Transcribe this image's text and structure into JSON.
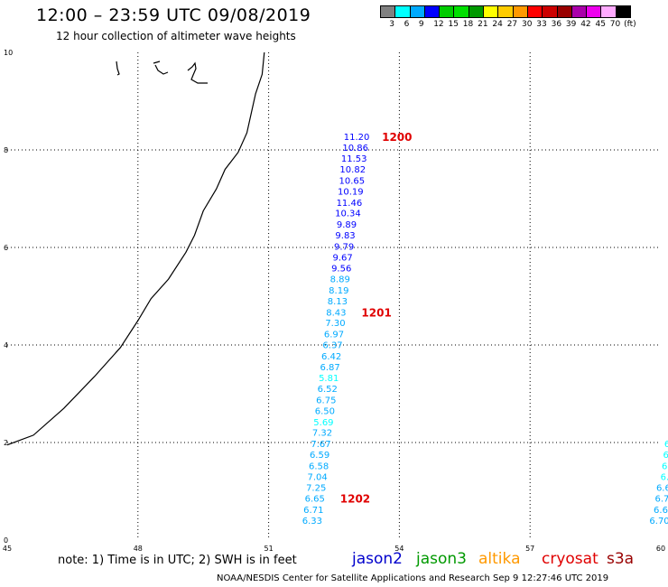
{
  "header": {
    "title": "12:00 – 23:59 UTC 09/08/2019",
    "subtitle": "12 hour collection of altimeter wave heights"
  },
  "legend": {
    "colors": [
      "#808080",
      "#00ffff",
      "#00aaff",
      "#0000ff",
      "#00cc00",
      "#00e000",
      "#009900",
      "#ffff00",
      "#ffcc00",
      "#ff9900",
      "#ff0000",
      "#cc0000",
      "#990000",
      "#aa00aa",
      "#ee00ee",
      "#ffaaff",
      "#000000"
    ],
    "labels": [
      "3",
      "6",
      "9",
      "12",
      "15",
      "18",
      "21",
      "24",
      "27",
      "30",
      "33",
      "36",
      "39",
      "42",
      "45",
      "70",
      "(ft)"
    ]
  },
  "axes": {
    "x_ticks": [
      "45",
      "48",
      "51",
      "54",
      "57",
      "60"
    ],
    "y_ticks": [
      "0",
      "2",
      "4",
      "6",
      "8",
      "10"
    ]
  },
  "tracks": [
    {
      "id": "track-1",
      "time_labels": [
        {
          "text": "1200",
          "at_index": 0
        },
        {
          "text": "1201",
          "at_index": 16
        },
        {
          "text": "1202",
          "at_index": 33
        }
      ],
      "points": [
        {
          "lon": 53.02,
          "lat": 8.28,
          "v": "11.20"
        },
        {
          "lon": 52.99,
          "lat": 8.06,
          "v": "10.86"
        },
        {
          "lon": 52.96,
          "lat": 7.83,
          "v": "11.53"
        },
        {
          "lon": 52.93,
          "lat": 7.61,
          "v": "10.82"
        },
        {
          "lon": 52.91,
          "lat": 7.38,
          "v": "10.65"
        },
        {
          "lon": 52.88,
          "lat": 7.16,
          "v": "10.19"
        },
        {
          "lon": 52.85,
          "lat": 6.93,
          "v": "11.46"
        },
        {
          "lon": 52.82,
          "lat": 6.71,
          "v": "10.34"
        },
        {
          "lon": 52.79,
          "lat": 6.48,
          "v": "9.89"
        },
        {
          "lon": 52.76,
          "lat": 6.26,
          "v": "9.83"
        },
        {
          "lon": 52.73,
          "lat": 6.03,
          "v": "9.79"
        },
        {
          "lon": 52.7,
          "lat": 5.81,
          "v": "9.67"
        },
        {
          "lon": 52.67,
          "lat": 5.58,
          "v": "9.56"
        },
        {
          "lon": 52.64,
          "lat": 5.36,
          "v": "8.89"
        },
        {
          "lon": 52.61,
          "lat": 5.13,
          "v": "8.19"
        },
        {
          "lon": 52.58,
          "lat": 4.91,
          "v": "8.13"
        },
        {
          "lon": 52.55,
          "lat": 4.68,
          "v": "8.43"
        },
        {
          "lon": 52.53,
          "lat": 4.46,
          "v": "7.30"
        },
        {
          "lon": 52.5,
          "lat": 4.23,
          "v": "6.97"
        },
        {
          "lon": 52.47,
          "lat": 4.01,
          "v": "6.37"
        },
        {
          "lon": 52.44,
          "lat": 3.78,
          "v": "6.42"
        },
        {
          "lon": 52.41,
          "lat": 3.56,
          "v": "6.87"
        },
        {
          "lon": 52.38,
          "lat": 3.33,
          "v": "5.81"
        },
        {
          "lon": 52.35,
          "lat": 3.11,
          "v": "6.52"
        },
        {
          "lon": 52.32,
          "lat": 2.88,
          "v": "6.75"
        },
        {
          "lon": 52.29,
          "lat": 2.66,
          "v": "6.50"
        },
        {
          "lon": 52.26,
          "lat": 2.43,
          "v": "5.69"
        },
        {
          "lon": 52.23,
          "lat": 2.21,
          "v": "7.32"
        },
        {
          "lon": 52.2,
          "lat": 1.98,
          "v": "7.67"
        },
        {
          "lon": 52.17,
          "lat": 1.76,
          "v": "6.59"
        },
        {
          "lon": 52.15,
          "lat": 1.53,
          "v": "6.58"
        },
        {
          "lon": 52.12,
          "lat": 1.31,
          "v": "7.04"
        },
        {
          "lon": 52.09,
          "lat": 1.08,
          "v": "7.25"
        },
        {
          "lon": 52.06,
          "lat": 0.86,
          "v": "6.65"
        },
        {
          "lon": 52.03,
          "lat": 0.63,
          "v": "6.71"
        },
        {
          "lon": 52.0,
          "lat": 0.41,
          "v": "6.33"
        }
      ]
    },
    {
      "id": "track-2",
      "time_labels": [],
      "points": [
        {
          "lon": 60.18,
          "lat": 1.98,
          "v": "6."
        },
        {
          "lon": 60.15,
          "lat": 1.76,
          "v": "6."
        },
        {
          "lon": 60.12,
          "lat": 1.53,
          "v": "6."
        },
        {
          "lon": 60.09,
          "lat": 1.31,
          "v": "6."
        },
        {
          "lon": 60.06,
          "lat": 1.08,
          "v": "6.6"
        },
        {
          "lon": 60.03,
          "lat": 0.86,
          "v": "6.7"
        },
        {
          "lon": 60.0,
          "lat": 0.63,
          "v": "6.6"
        },
        {
          "lon": 59.97,
          "lat": 0.41,
          "v": "6.70"
        }
      ]
    }
  ],
  "coastline": [
    [
      45,
      1.95
    ],
    [
      45.6,
      2.15
    ],
    [
      46.3,
      2.7
    ],
    [
      47.0,
      3.35
    ],
    [
      47.6,
      3.95
    ],
    [
      48.0,
      4.5
    ],
    [
      48.3,
      4.95
    ],
    [
      48.7,
      5.35
    ],
    [
      49.1,
      5.9
    ],
    [
      49.3,
      6.25
    ],
    [
      49.5,
      6.75
    ],
    [
      49.8,
      7.2
    ],
    [
      50.0,
      7.6
    ],
    [
      50.3,
      7.95
    ],
    [
      50.5,
      8.35
    ],
    [
      50.6,
      8.75
    ],
    [
      50.7,
      9.15
    ],
    [
      50.85,
      9.55
    ],
    [
      50.9,
      10.0
    ]
  ],
  "footer": {
    "note": "note:  1) Time is in UTC;  2) SWH is in feet",
    "credit": "NOAA/NESDIS Center for Satellite Applications and Research    Sep  9 12:27:46 UTC 2019",
    "satellites": [
      {
        "name": "jason2",
        "color": "#0000cc"
      },
      {
        "name": "jason3",
        "color": "#009900"
      },
      {
        "name": "altika",
        "color": "#ff9900"
      },
      {
        "name": "cryosat",
        "color": "#e00000"
      },
      {
        "name": "s3a",
        "color": "#990000"
      }
    ]
  }
}
